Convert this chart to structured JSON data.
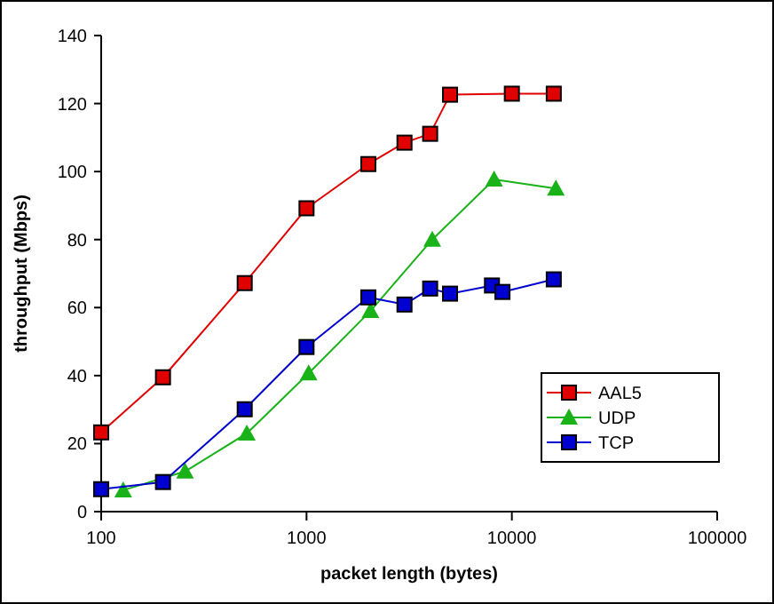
{
  "chart_data": {
    "type": "line",
    "xlabel": "packet length (bytes)",
    "ylabel": "throughput (Mbps)",
    "log": "x",
    "xlim": [
      100,
      100000
    ],
    "xticks": [
      100,
      1000,
      10000,
      100000
    ],
    "ylim": [
      0,
      140
    ],
    "yticks": [
      0,
      20,
      40,
      60,
      80,
      100,
      120,
      140
    ],
    "grid": false,
    "legend": "bottom right",
    "series": [
      {
        "name": "AAL5",
        "color": "#e00000",
        "marker": "square",
        "x": [
          100,
          200,
          500,
          1000,
          2000,
          3000,
          4000,
          5000,
          10000,
          16000
        ],
        "values": [
          23.3,
          39.5,
          67.2,
          89.2,
          102.2,
          108.5,
          111.1,
          122.6,
          122.9,
          122.9
        ]
      },
      {
        "name": "UDP",
        "color": "#19b219",
        "marker": "triangle",
        "x": [
          128,
          256,
          512,
          1024,
          2048,
          4096,
          8192,
          16384
        ],
        "values": [
          6.3,
          11.8,
          23,
          40.7,
          59,
          80,
          97.7,
          95
        ]
      },
      {
        "name": "TCP",
        "color": "#0000d0",
        "marker": "square",
        "x": [
          100,
          200,
          500,
          1000,
          2000,
          3000,
          4000,
          5000,
          8000,
          9000,
          16000
        ],
        "values": [
          6.6,
          8.7,
          30.1,
          48.4,
          63,
          60.9,
          65.6,
          64.1,
          66.5,
          64.6,
          68.3
        ]
      }
    ]
  }
}
